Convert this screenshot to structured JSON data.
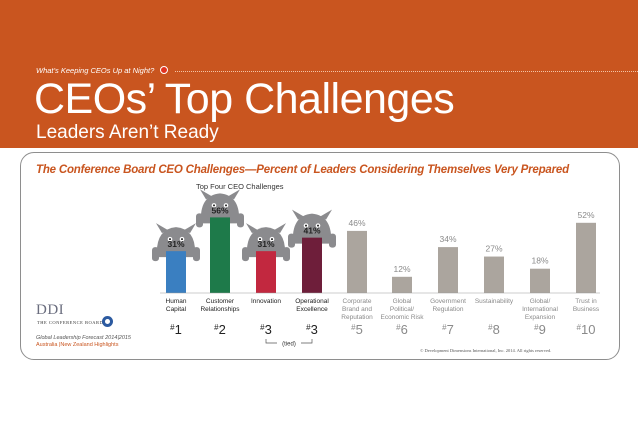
{
  "header": {
    "kicker": "What’s Keeping CEOs Up at Night?",
    "title": "CEOs’ Top Challenges",
    "subtitle": "Leaders Aren’t Ready"
  },
  "chart_data": {
    "type": "bar",
    "title": "The Conference Board CEO Challenges—Percent of Leaders Considering Themselves Very Prepared",
    "subtitle": "Top Four CEO Challenges",
    "categories": [
      [
        "Human",
        "Capital"
      ],
      [
        "Customer",
        "Relationships"
      ],
      [
        "Innovation"
      ],
      [
        "Operational",
        "Excellence"
      ],
      [
        "Corporate",
        "Brand and",
        "Reputation"
      ],
      [
        "Global",
        "Political/",
        "Economic Risk"
      ],
      [
        "Government",
        "Regulation"
      ],
      [
        "Sustainability"
      ],
      [
        "Global/",
        "International",
        "Expansion"
      ],
      [
        "Trust in",
        "Business"
      ]
    ],
    "values": [
      31,
      56,
      31,
      41,
      46,
      12,
      34,
      27,
      18,
      52
    ],
    "value_labels": [
      "31%",
      "56%",
      "31%",
      "41%",
      "46%",
      "12%",
      "34%",
      "27%",
      "18%",
      "52%"
    ],
    "ranks": [
      "1",
      "2",
      "3",
      "3",
      "5",
      "6",
      "7",
      "8",
      "9",
      "10"
    ],
    "rank_prefix": "#",
    "tied_label": "(tied)",
    "colors": [
      "#3a7fc1",
      "#1e7a4a",
      "#c2283f",
      "#6e1e3a",
      "#aba59e",
      "#aba59e",
      "#aba59e",
      "#aba59e",
      "#aba59e",
      "#aba59e"
    ],
    "monster_color": "#8b8b8e",
    "ylim": [
      0,
      60
    ],
    "grid": false,
    "legend": "none"
  },
  "footer": {
    "logo": "DDI",
    "logo_sub": "THE CONFERENCE BOARD",
    "forecast": "Global Leadership Forecast 2014|2015",
    "highlights": "Australia |New Zealand Highlights",
    "copyright": "© Development Dimensions International, Inc. 2014. All rights reserved."
  }
}
